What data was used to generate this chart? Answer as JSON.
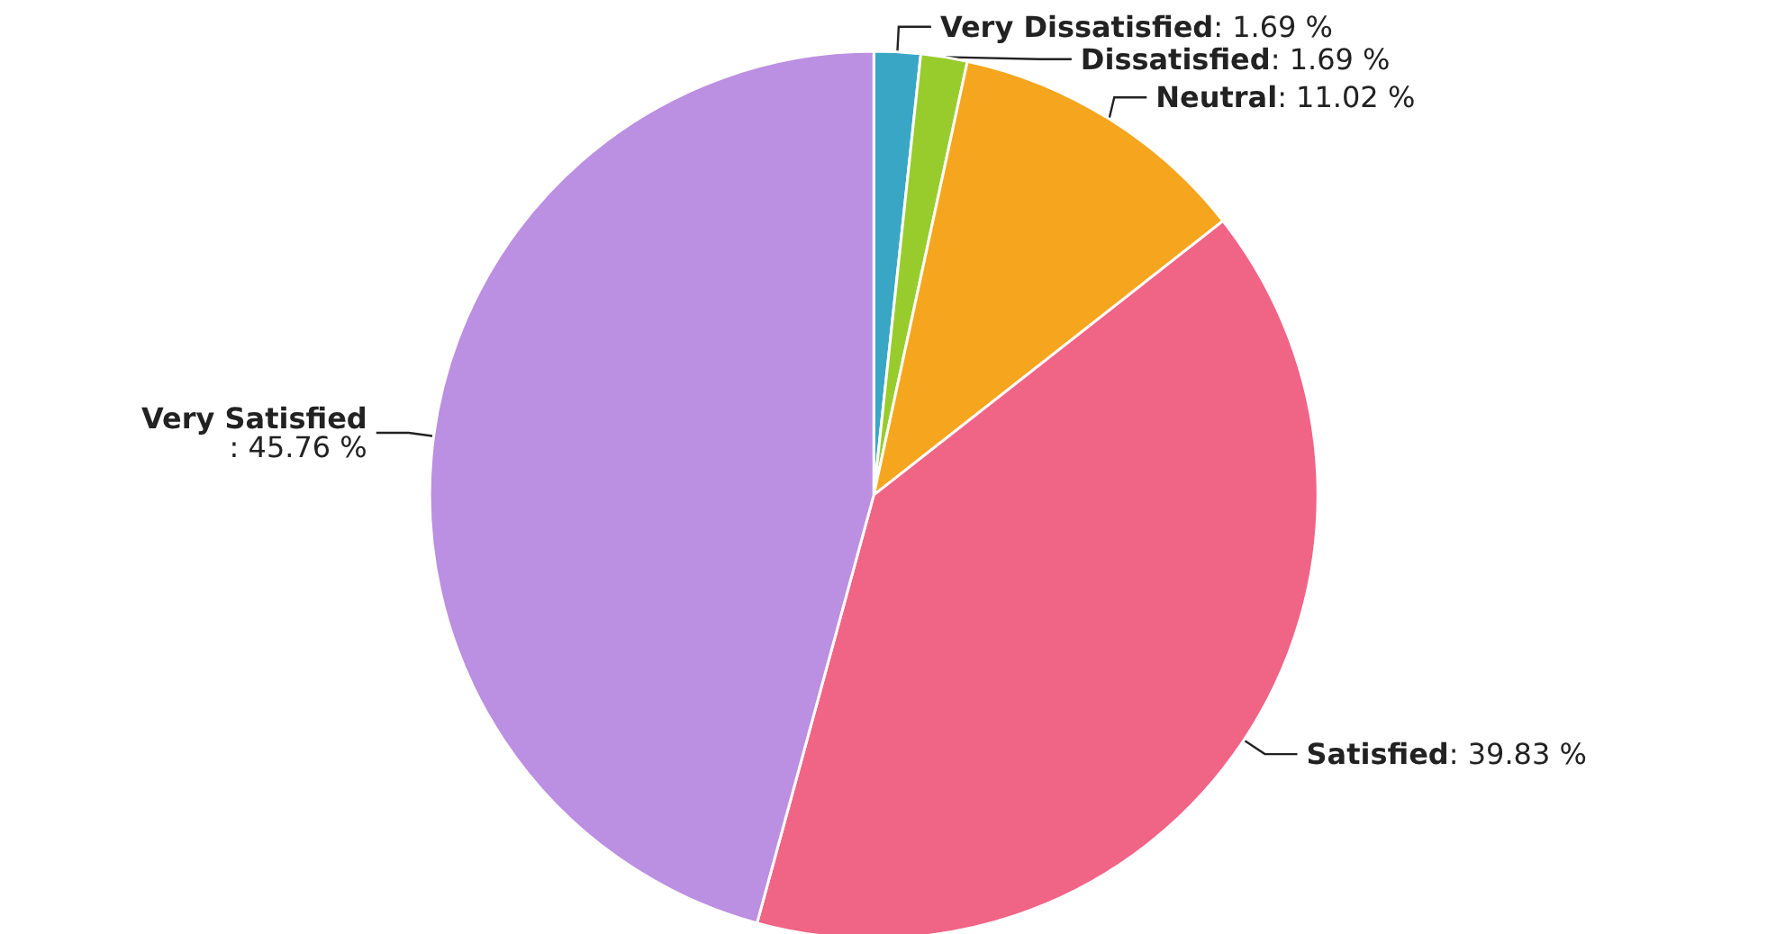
{
  "chart_data": {
    "type": "pie",
    "categories": [
      "Very Dissatisfied",
      "Dissatisfied",
      "Neutral",
      "Satisfied",
      "Very Satisfied"
    ],
    "values": [
      1.69,
      1.69,
      11.02,
      39.83,
      45.76
    ],
    "colors": [
      "#3aa6c6",
      "#98cc2c",
      "#f5a61e",
      "#f06486",
      "#bb8fe1"
    ],
    "value_labels": [
      ": 1.69 %",
      ": 1.69 %",
      ": 11.02 %",
      ": 39.83 %",
      ": 45.76 %"
    ],
    "legend": false
  }
}
